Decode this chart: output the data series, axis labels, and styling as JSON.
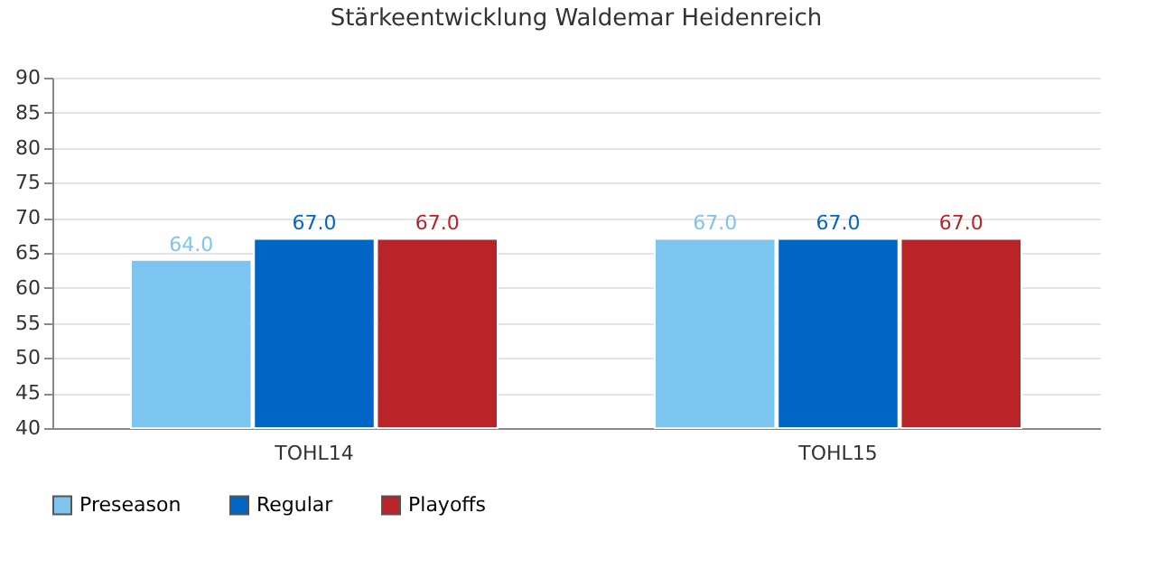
{
  "chart_data": {
    "type": "bar",
    "title": "Stärkeentwicklung Waldemar Heidenreich",
    "categories": [
      "TOHL14",
      "TOHL15"
    ],
    "series": [
      {
        "name": "Preseason",
        "color": "#7cc5f0",
        "values": [
          64.0,
          67.0
        ],
        "value_labels": [
          "64.0",
          "67.0"
        ]
      },
      {
        "name": "Regular",
        "color": "#0066c6",
        "values": [
          67.0,
          67.0
        ],
        "value_labels": [
          "67.0",
          "67.0"
        ]
      },
      {
        "name": "Playoffs",
        "color": "#b82428",
        "values": [
          67.0,
          67.0
        ],
        "value_labels": [
          "67.0",
          "67.0"
        ]
      }
    ],
    "ylim": [
      40,
      90
    ],
    "yticks": [
      40,
      45,
      50,
      55,
      60,
      65,
      70,
      75,
      80,
      85,
      90
    ],
    "grid": "y",
    "legend": "bottom"
  }
}
